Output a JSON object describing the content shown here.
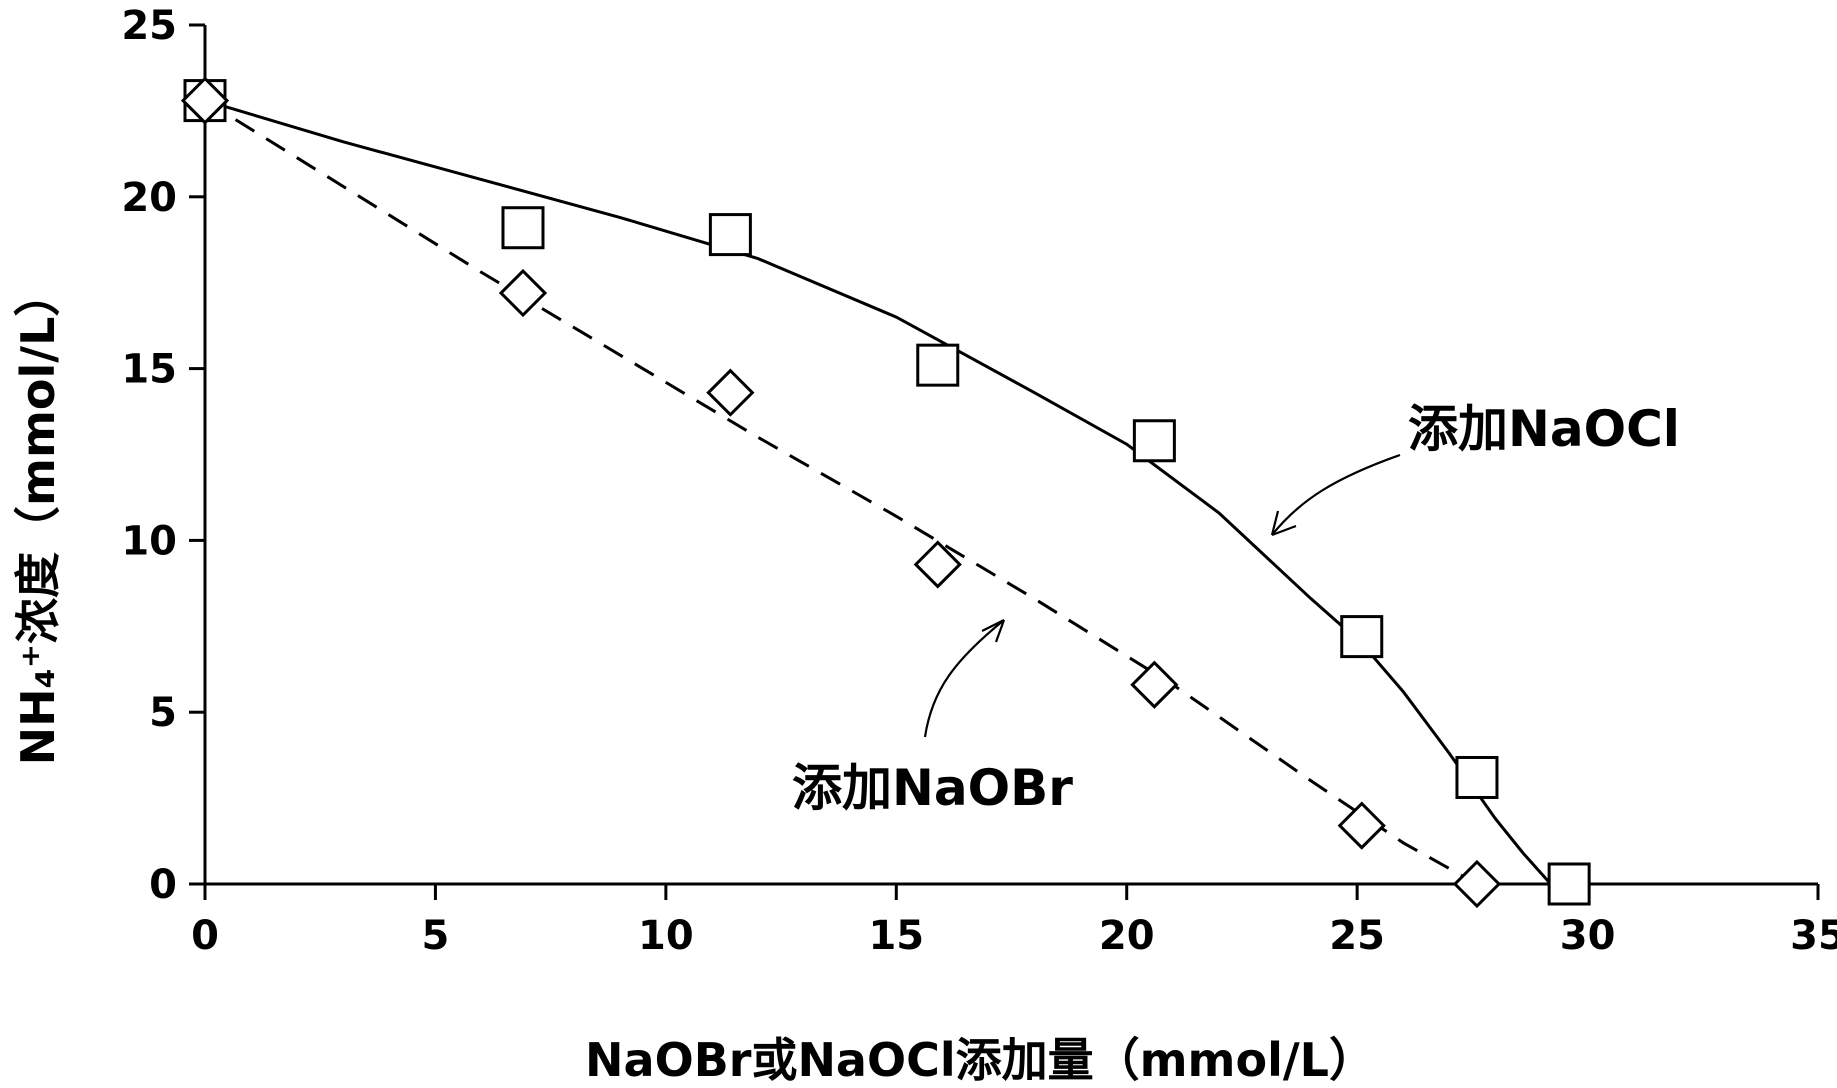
{
  "chart_data": {
    "type": "scatter",
    "title": "",
    "xlabel": "NaOBr或NaOCl添加量（mmol/L）",
    "ylabel": "NH₄⁺浓度（mmol/L）",
    "xlim": [
      0,
      35
    ],
    "ylim": [
      0,
      25
    ],
    "x_ticks": [
      "0",
      "5",
      "10",
      "15",
      "20",
      "25",
      "30",
      "35"
    ],
    "y_ticks": [
      "0",
      "5",
      "10",
      "15",
      "20",
      "25"
    ],
    "grid": false,
    "legend": "none",
    "series": [
      {
        "name": "添加NaOCl",
        "marker": "square",
        "line": "solid",
        "x": [
          0,
          6.9,
          11.4,
          15.9,
          20.6,
          25.1,
          27.6,
          29.6
        ],
        "y": [
          22.8,
          19.1,
          18.9,
          15.1,
          12.9,
          7.2,
          3.1,
          0.0
        ],
        "curve": {
          "x": [
            0,
            3,
            6,
            9,
            12,
            15,
            18,
            20,
            22,
            24,
            25.1,
            26,
            27,
            28,
            28.6,
            29.2
          ],
          "y": [
            22.8,
            21.6,
            20.5,
            19.4,
            18.2,
            16.5,
            14.3,
            12.8,
            10.8,
            8.3,
            7.0,
            5.6,
            3.8,
            1.9,
            0.9,
            0.0
          ]
        }
      },
      {
        "name": "添加NaOBr",
        "marker": "diamond",
        "line": "dashed",
        "x": [
          0,
          6.9,
          11.4,
          15.9,
          20.6,
          25.1,
          27.6
        ],
        "y": [
          22.8,
          17.2,
          14.3,
          9.3,
          5.8,
          1.7,
          0.0
        ],
        "curve": {
          "x": [
            0,
            3,
            6,
            9,
            12,
            15,
            18,
            21,
            24,
            26,
            27.6
          ],
          "y": [
            22.8,
            20.3,
            17.8,
            15.4,
            13.0,
            10.7,
            8.3,
            5.8,
            3.0,
            1.2,
            0.0
          ]
        }
      }
    ],
    "annotations": [
      {
        "text": "添加NaOCl",
        "target_series": "添加NaOCl"
      },
      {
        "text": "添加NaOBr",
        "target_series": "添加NaOBr"
      }
    ]
  }
}
